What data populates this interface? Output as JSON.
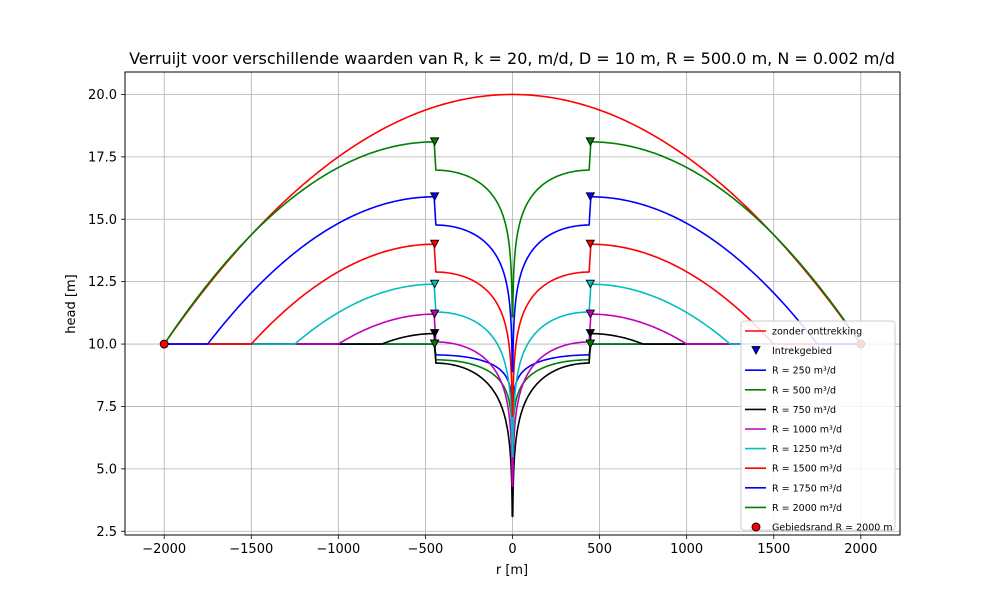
{
  "chart_data": {
    "type": "line",
    "title": "Verruijt voor verschillende waarden van R,  k = 20,  m/d, D = 10 m, R = 500.0 m, N = 0.002 m/d",
    "xlabel": "r [m]",
    "ylabel": "head [m]",
    "xlim": [
      -2225,
      2225
    ],
    "ylim": [
      2.35,
      20.9
    ],
    "xticks": [
      -2000,
      -1500,
      -1000,
      -500,
      0,
      500,
      1000,
      1500,
      2000
    ],
    "xtick_labels": [
      "−2000",
      "−1500",
      "−1000",
      "−500",
      "0",
      "500",
      "1000",
      "1500",
      "2000"
    ],
    "yticks": [
      2.5,
      5.0,
      7.5,
      10.0,
      12.5,
      15.0,
      17.5,
      20.0
    ],
    "ytick_labels": [
      "2.5",
      "5.0",
      "7.5",
      "10.0",
      "12.5",
      "15.0",
      "17.5",
      "20.0"
    ],
    "grid": true,
    "legend_position": "lower-right",
    "boundary_radius": 2000,
    "base_head": 10,
    "top_head": 20,
    "intrek_r": 447,
    "series": [
      {
        "name": "zonder onttrekking",
        "kind": "parabola",
        "color": "#ff0000"
      },
      {
        "name": "R = 250 m³/d",
        "Q": 250,
        "color": "#0000ff",
        "peak": 10.0,
        "min_head": 7.3,
        "flat_from": 447
      },
      {
        "name": "R = 500 m³/d",
        "Q": 500,
        "color": "#008000",
        "peak": 10.0,
        "min_head": 6.1,
        "flat_from": 447
      },
      {
        "name": "R = 750 m³/d",
        "Q": 750,
        "color": "#000000",
        "peak": 10.42,
        "min_head": 3.1,
        "flat_from": 750
      },
      {
        "name": "R = 1000 m³/d",
        "Q": 1000,
        "color": "#bf00bf",
        "peak": 11.2,
        "min_head": 4.3,
        "flat_from": 1000
      },
      {
        "name": "R = 1250 m³/d",
        "Q": 1250,
        "color": "#00bfbf",
        "peak": 12.4,
        "min_head": 5.5,
        "flat_from": 1250
      },
      {
        "name": "R = 1500 m³/d",
        "Q": 1500,
        "color": "#ff0000",
        "peak": 14.0,
        "min_head": 7.1,
        "flat_from": 1500
      },
      {
        "name": "R = 1750 m³/d",
        "Q": 1750,
        "color": "#0000ff",
        "peak": 15.9,
        "min_head": 8.9,
        "flat_from": 1750
      },
      {
        "name": "R = 2000 m³/d",
        "Q": 2000,
        "color": "#008000",
        "peak": 18.1,
        "min_head": 11.1,
        "flat_from": 2000
      }
    ],
    "markers": {
      "intrekgebied_label": "Intrekgebied",
      "gebiedsrand_label": "Gebiedsrand R = 2000 m",
      "gebiedsrand_points": [
        [
          -2000,
          10.0
        ],
        [
          2000,
          10.0
        ]
      ]
    }
  }
}
